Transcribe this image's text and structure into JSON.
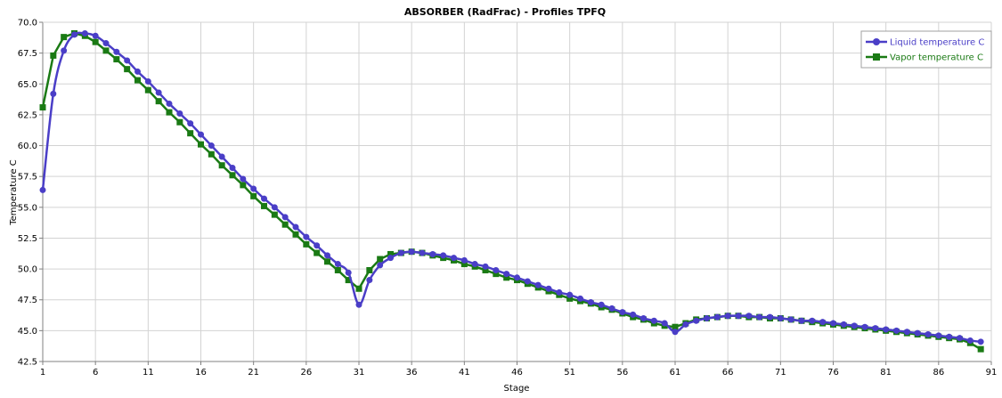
{
  "chart_data": {
    "type": "line",
    "title": "ABSORBER (RadFrac) - Profiles TPFQ",
    "xlabel": "Stage",
    "ylabel": "Temperature C",
    "xlim": [
      1,
      91
    ],
    "ylim": [
      42.5,
      70.0
    ],
    "xticks": [
      1,
      6,
      11,
      16,
      21,
      26,
      31,
      36,
      41,
      46,
      51,
      56,
      61,
      66,
      71,
      76,
      81,
      86,
      91
    ],
    "yticks": [
      42.5,
      45.0,
      47.5,
      50.0,
      52.5,
      55.0,
      57.5,
      60.0,
      62.5,
      65.0,
      67.5,
      70.0
    ],
    "ytick_labels": [
      "42.5",
      "45.0",
      "47.5",
      "50.0",
      "52.5",
      "55.0",
      "57.5",
      "60.0",
      "62.5",
      "65.0",
      "67.5",
      "70.0"
    ],
    "grid": true,
    "legend_position": "top-right",
    "x": [
      1,
      2,
      3,
      4,
      5,
      6,
      7,
      8,
      9,
      10,
      11,
      12,
      13,
      14,
      15,
      16,
      17,
      18,
      19,
      20,
      21,
      22,
      23,
      24,
      25,
      26,
      27,
      28,
      29,
      30,
      31,
      32,
      33,
      34,
      35,
      36,
      37,
      38,
      39,
      40,
      41,
      42,
      43,
      44,
      45,
      46,
      47,
      48,
      49,
      50,
      51,
      52,
      53,
      54,
      55,
      56,
      57,
      58,
      59,
      60,
      61,
      62,
      63,
      64,
      65,
      66,
      67,
      68,
      69,
      70,
      71,
      72,
      73,
      74,
      75,
      76,
      77,
      78,
      79,
      80,
      81,
      82,
      83,
      84,
      85,
      86,
      87,
      88,
      89,
      90
    ],
    "series": [
      {
        "name": "Liquid temperature C",
        "color": "#4a3ec7",
        "marker": "circle",
        "values": [
          56.4,
          64.2,
          67.7,
          69.0,
          69.1,
          68.9,
          68.3,
          67.6,
          66.9,
          66.0,
          65.2,
          64.3,
          63.4,
          62.6,
          61.8,
          60.9,
          60.0,
          59.1,
          58.2,
          57.3,
          56.5,
          55.7,
          55.0,
          54.2,
          53.4,
          52.6,
          51.9,
          51.1,
          50.4,
          49.7,
          47.1,
          49.1,
          50.3,
          50.9,
          51.3,
          51.4,
          51.3,
          51.2,
          51.1,
          50.9,
          50.7,
          50.4,
          50.2,
          49.9,
          49.6,
          49.3,
          49.0,
          48.7,
          48.4,
          48.1,
          47.9,
          47.6,
          47.3,
          47.1,
          46.8,
          46.5,
          46.3,
          46.0,
          45.8,
          45.6,
          44.9,
          45.5,
          45.8,
          46.0,
          46.1,
          46.2,
          46.2,
          46.2,
          46.1,
          46.1,
          46.0,
          45.9,
          45.8,
          45.8,
          45.7,
          45.6,
          45.5,
          45.4,
          45.3,
          45.2,
          45.1,
          45.0,
          44.9,
          44.8,
          44.7,
          44.6,
          44.5,
          44.4,
          44.2,
          44.1
        ]
      },
      {
        "name": "Vapor temperature C",
        "color": "#1a7a14",
        "marker": "square",
        "values": [
          63.1,
          67.3,
          68.8,
          69.1,
          68.9,
          68.4,
          67.7,
          67.0,
          66.2,
          65.3,
          64.5,
          63.6,
          62.7,
          61.9,
          61.0,
          60.1,
          59.3,
          58.4,
          57.6,
          56.8,
          55.9,
          55.1,
          54.4,
          53.6,
          52.8,
          52.0,
          51.3,
          50.6,
          49.9,
          49.1,
          48.4,
          49.9,
          50.8,
          51.2,
          51.3,
          51.4,
          51.3,
          51.1,
          50.9,
          50.7,
          50.4,
          50.2,
          49.9,
          49.6,
          49.3,
          49.1,
          48.8,
          48.5,
          48.2,
          47.9,
          47.6,
          47.4,
          47.2,
          46.9,
          46.7,
          46.4,
          46.1,
          45.9,
          45.6,
          45.4,
          45.3,
          45.6,
          45.9,
          46.0,
          46.1,
          46.2,
          46.2,
          46.1,
          46.1,
          46.0,
          46.0,
          45.9,
          45.8,
          45.7,
          45.6,
          45.5,
          45.4,
          45.3,
          45.2,
          45.1,
          45.0,
          44.9,
          44.8,
          44.7,
          44.6,
          44.5,
          44.4,
          44.3,
          44.0,
          43.5
        ]
      }
    ]
  }
}
